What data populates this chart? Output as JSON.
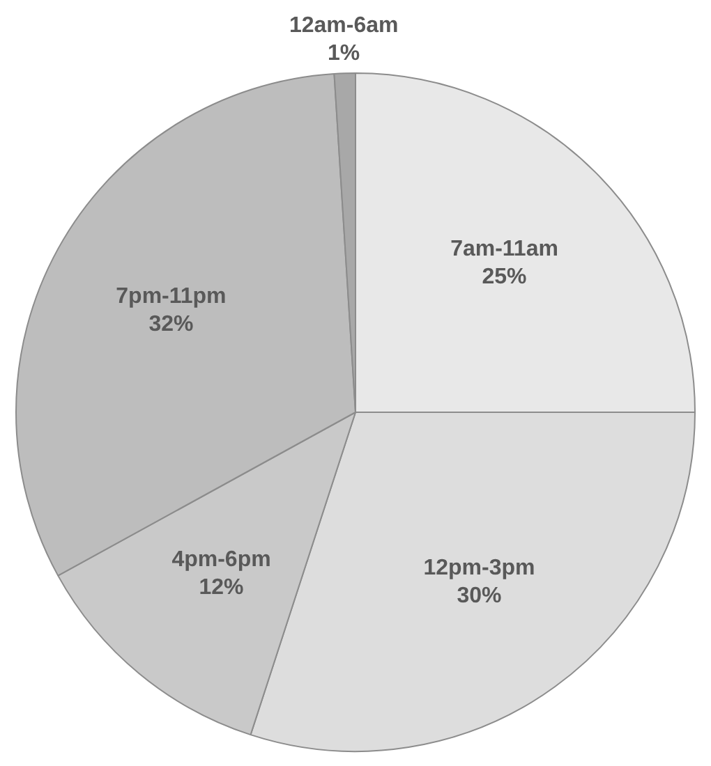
{
  "chart_data": {
    "type": "pie",
    "categories": [
      "7am-11am",
      "12pm-3pm",
      "4pm-6pm",
      "7pm-11pm",
      "12am-6am"
    ],
    "values": [
      25,
      30,
      12,
      32,
      1
    ],
    "colors": [
      "#e8e8e8",
      "#dddddd",
      "#c9c9c9",
      "#bdbdbd",
      "#a8a8a8"
    ],
    "value_labels": [
      "25%",
      "30%",
      "12%",
      "32%",
      "1%"
    ],
    "legend": false
  }
}
